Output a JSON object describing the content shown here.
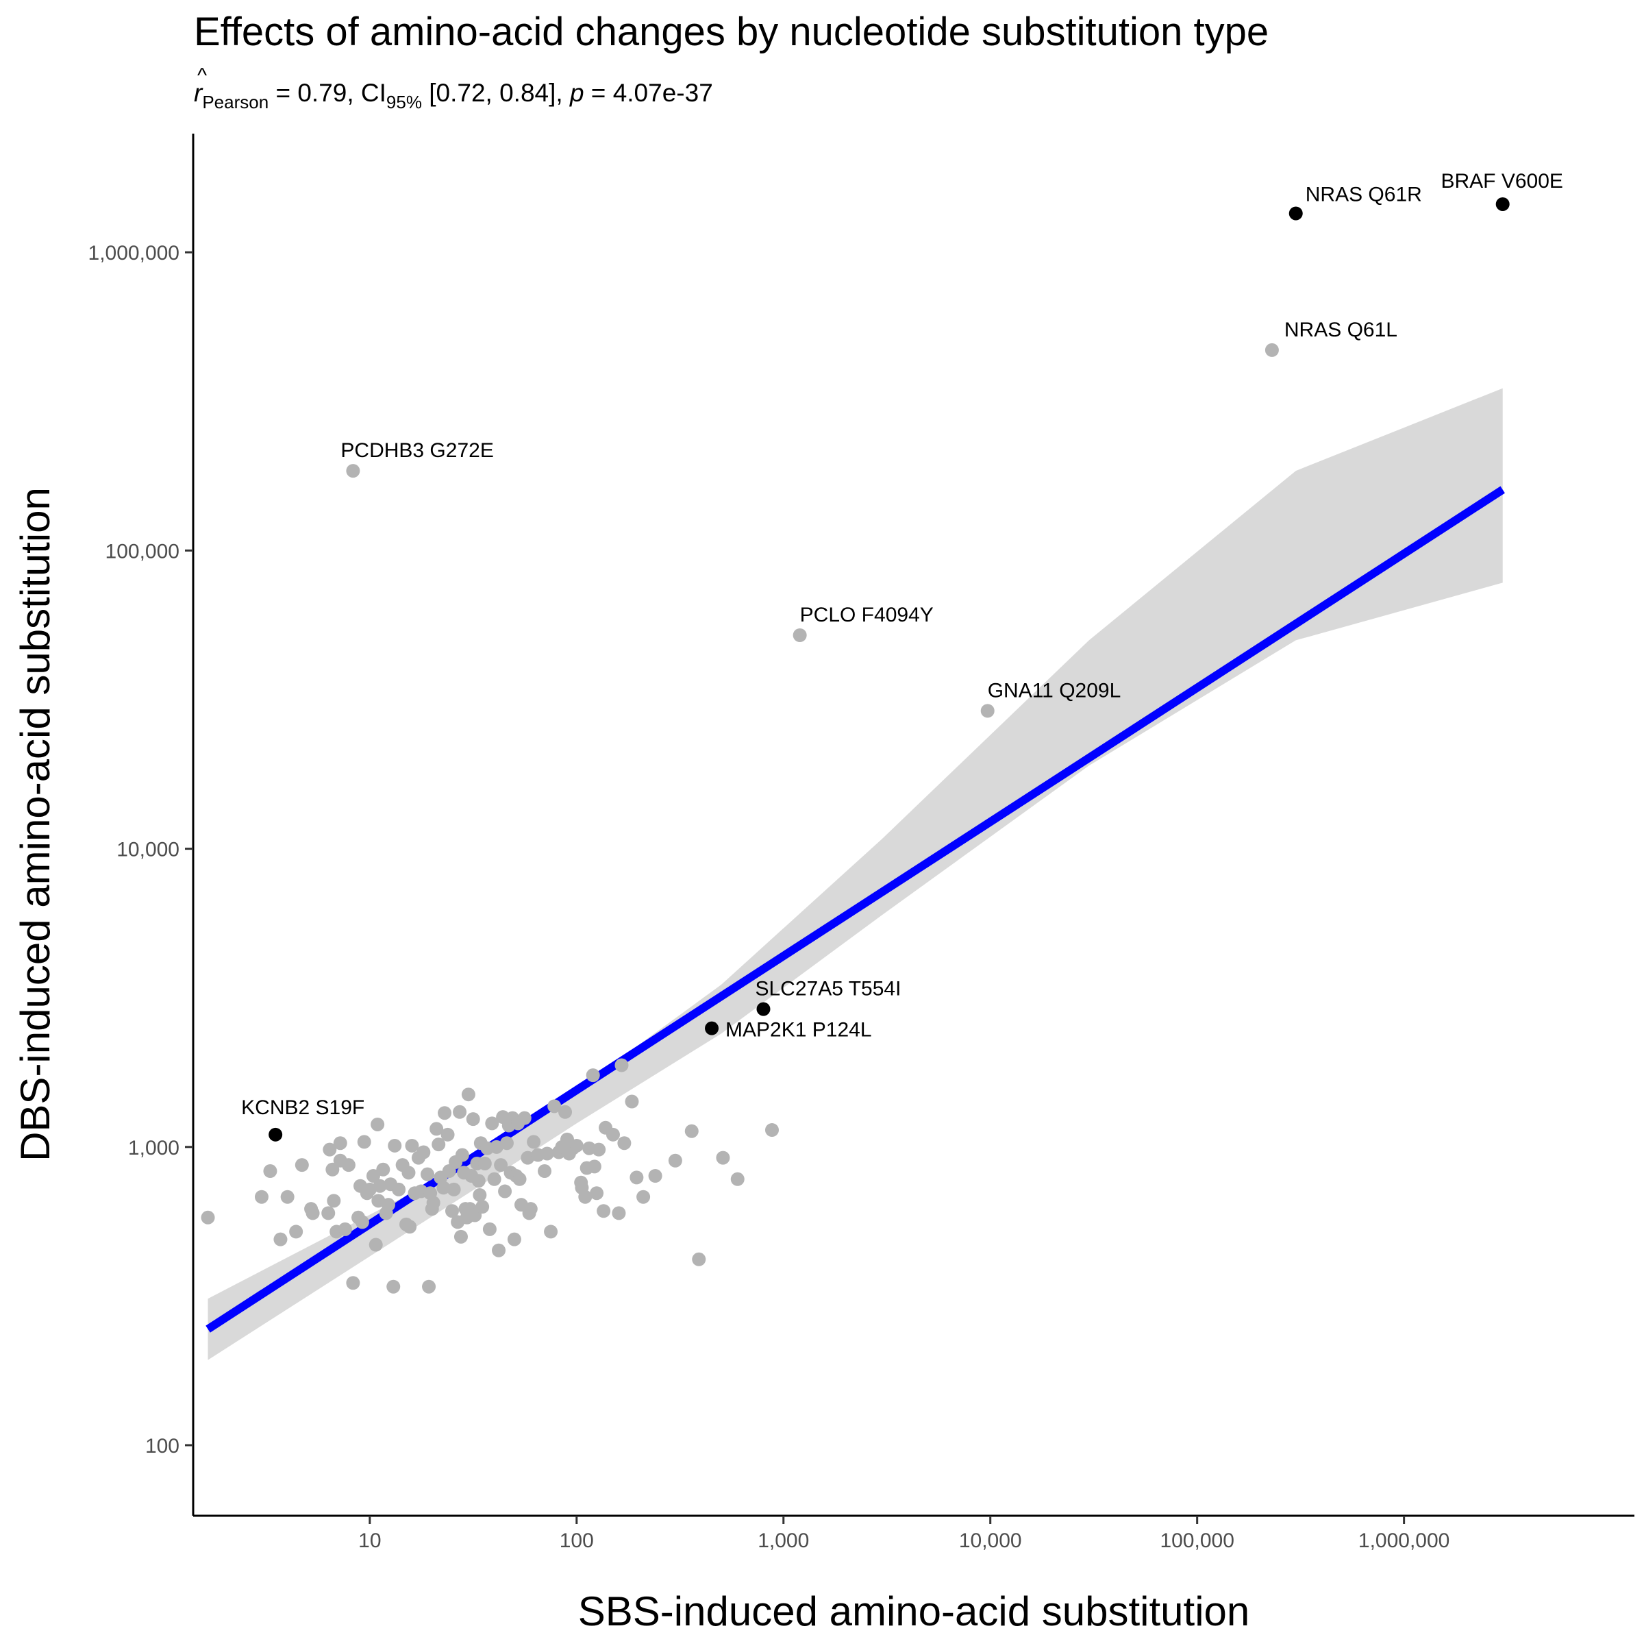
{
  "chart_data": {
    "type": "scatter",
    "title": "Effects of amino-acid changes by nucleotide substitution type",
    "subtitle": {
      "r_symbol": "r",
      "r_sub": "Pearson",
      "r_value": " = 0.79, CI",
      "ci_sub": "95%",
      "ci_value": " [0.72, 0.84], ",
      "p_symbol": "p",
      "p_value": " = 4.07e-37"
    },
    "xlabel": "SBS-induced amino-acid substitution",
    "ylabel": "DBS-induced amino-acid substitution",
    "x_scale": "log10",
    "y_scale": "log10",
    "xlim": [
      1.4,
      13000000
    ],
    "ylim": [
      58,
      2500000
    ],
    "x_ticks": [
      {
        "value": 10,
        "label": "10"
      },
      {
        "value": 100,
        "label": "100"
      },
      {
        "value": 1000,
        "label": "1,000"
      },
      {
        "value": 10000,
        "label": "10,000"
      },
      {
        "value": 100000,
        "label": "100,000"
      },
      {
        "value": 1000000,
        "label": "1,000,000"
      }
    ],
    "y_ticks": [
      {
        "value": 100,
        "label": "100"
      },
      {
        "value": 1000,
        "label": "1,000"
      },
      {
        "value": 10000,
        "label": "10,000"
      },
      {
        "value": 100000,
        "label": "100,000"
      },
      {
        "value": 1000000,
        "label": "1,000,000"
      }
    ],
    "grid": false,
    "legend": "none",
    "colors": {
      "gray_points": "#b3b3b3",
      "black_points": "#000000",
      "fit_line": "#0000ff",
      "ci_band": "#d9d9d9"
    },
    "fit_line": {
      "x": [
        1.65,
        3000000
      ],
      "y": [
        245,
        160000
      ]
    },
    "ci_band": {
      "x": [
        1.65,
        30,
        100,
        500,
        3000,
        30000,
        300000,
        3000000
      ],
      "upper": [
        310,
        880,
        1550,
        3500,
        10800,
        50000,
        185000,
        350000
      ],
      "lower": [
        193,
        700,
        1200,
        2400,
        6000,
        19000,
        50000,
        78000
      ]
    },
    "labeled_points": [
      {
        "label": "BRAF V600E",
        "x": 3000000,
        "y": 1450000,
        "color": "black"
      },
      {
        "label": "NRAS Q61R",
        "x": 300000,
        "y": 1350000,
        "color": "black"
      },
      {
        "label": "NRAS Q61L",
        "x": 230000,
        "y": 470000,
        "color": "gray"
      },
      {
        "label": "PCDHB3 G272E",
        "x": 8.3,
        "y": 185000,
        "color": "gray"
      },
      {
        "label": "PCLO F4094Y",
        "x": 1200,
        "y": 52000,
        "color": "gray"
      },
      {
        "label": "GNA11 Q209L",
        "x": 9700,
        "y": 29000,
        "color": "gray"
      },
      {
        "label": "SLC27A5 T554I",
        "x": 800,
        "y": 2900,
        "color": "black"
      },
      {
        "label": "MAP2K1 P124L",
        "x": 450,
        "y": 2500,
        "color": "black"
      },
      {
        "label": "KCNB2 S19F",
        "x": 3.5,
        "y": 1100,
        "color": "black"
      }
    ],
    "points": [
      {
        "x": 1.65,
        "y": 580
      },
      {
        "x": 3.0,
        "y": 680
      },
      {
        "x": 3.3,
        "y": 830
      },
      {
        "x": 3.7,
        "y": 490
      },
      {
        "x": 4.0,
        "y": 680
      },
      {
        "x": 4.4,
        "y": 520
      },
      {
        "x": 4.7,
        "y": 870
      },
      {
        "x": 5.2,
        "y": 620
      },
      {
        "x": 5.3,
        "y": 600
      },
      {
        "x": 6.3,
        "y": 600
      },
      {
        "x": 6.4,
        "y": 980
      },
      {
        "x": 6.6,
        "y": 840
      },
      {
        "x": 6.7,
        "y": 660
      },
      {
        "x": 6.9,
        "y": 520
      },
      {
        "x": 7.2,
        "y": 1030
      },
      {
        "x": 7.2,
        "y": 900
      },
      {
        "x": 7.6,
        "y": 530
      },
      {
        "x": 7.9,
        "y": 870
      },
      {
        "x": 8.3,
        "y": 350
      },
      {
        "x": 8.8,
        "y": 580
      },
      {
        "x": 9.0,
        "y": 740
      },
      {
        "x": 9.2,
        "y": 560
      },
      {
        "x": 9.4,
        "y": 1040
      },
      {
        "x": 9.7,
        "y": 700
      },
      {
        "x": 10.0,
        "y": 720
      },
      {
        "x": 10.4,
        "y": 800
      },
      {
        "x": 10.7,
        "y": 470
      },
      {
        "x": 10.9,
        "y": 1190
      },
      {
        "x": 11.0,
        "y": 660
      },
      {
        "x": 11.2,
        "y": 740
      },
      {
        "x": 11.6,
        "y": 840
      },
      {
        "x": 12.0,
        "y": 600
      },
      {
        "x": 12.3,
        "y": 640
      },
      {
        "x": 12.6,
        "y": 750
      },
      {
        "x": 13.0,
        "y": 340
      },
      {
        "x": 13.2,
        "y": 1010
      },
      {
        "x": 13.8,
        "y": 720
      },
      {
        "x": 14.4,
        "y": 870
      },
      {
        "x": 15.0,
        "y": 550
      },
      {
        "x": 15.4,
        "y": 820
      },
      {
        "x": 15.6,
        "y": 540
      },
      {
        "x": 16.0,
        "y": 1010
      },
      {
        "x": 16.5,
        "y": 700
      },
      {
        "x": 17.2,
        "y": 920
      },
      {
        "x": 17.7,
        "y": 710
      },
      {
        "x": 18.2,
        "y": 960
      },
      {
        "x": 19.0,
        "y": 810
      },
      {
        "x": 19.3,
        "y": 340
      },
      {
        "x": 19.6,
        "y": 700
      },
      {
        "x": 20.0,
        "y": 620
      },
      {
        "x": 20.3,
        "y": 650
      },
      {
        "x": 21.0,
        "y": 1150
      },
      {
        "x": 21.5,
        "y": 1020
      },
      {
        "x": 22.0,
        "y": 790
      },
      {
        "x": 22.7,
        "y": 730
      },
      {
        "x": 23.0,
        "y": 1300
      },
      {
        "x": 23.8,
        "y": 1100
      },
      {
        "x": 24.2,
        "y": 830
      },
      {
        "x": 25.0,
        "y": 610
      },
      {
        "x": 25.5,
        "y": 720
      },
      {
        "x": 26.0,
        "y": 890
      },
      {
        "x": 26.6,
        "y": 560
      },
      {
        "x": 27.2,
        "y": 1310
      },
      {
        "x": 27.6,
        "y": 500
      },
      {
        "x": 28.0,
        "y": 940
      },
      {
        "x": 28.5,
        "y": 820
      },
      {
        "x": 29.0,
        "y": 620
      },
      {
        "x": 29.5,
        "y": 580
      },
      {
        "x": 30.0,
        "y": 1500
      },
      {
        "x": 30.5,
        "y": 620
      },
      {
        "x": 31.0,
        "y": 800
      },
      {
        "x": 31.6,
        "y": 1240
      },
      {
        "x": 32.2,
        "y": 590
      },
      {
        "x": 33.0,
        "y": 880
      },
      {
        "x": 33.6,
        "y": 770
      },
      {
        "x": 34.0,
        "y": 690
      },
      {
        "x": 34.4,
        "y": 1030
      },
      {
        "x": 35.0,
        "y": 630
      },
      {
        "x": 36.0,
        "y": 880
      },
      {
        "x": 37.0,
        "y": 990
      },
      {
        "x": 38.0,
        "y": 530
      },
      {
        "x": 39.0,
        "y": 1200
      },
      {
        "x": 40.0,
        "y": 780
      },
      {
        "x": 41.0,
        "y": 1000
      },
      {
        "x": 42.0,
        "y": 450
      },
      {
        "x": 43.0,
        "y": 870
      },
      {
        "x": 44.0,
        "y": 1260
      },
      {
        "x": 45.0,
        "y": 710
      },
      {
        "x": 46.0,
        "y": 1030
      },
      {
        "x": 47.0,
        "y": 1180
      },
      {
        "x": 48.0,
        "y": 820
      },
      {
        "x": 49.0,
        "y": 1250
      },
      {
        "x": 50.0,
        "y": 490
      },
      {
        "x": 51.0,
        "y": 800
      },
      {
        "x": 52.0,
        "y": 1200
      },
      {
        "x": 53.0,
        "y": 780
      },
      {
        "x": 54.0,
        "y": 640
      },
      {
        "x": 56.0,
        "y": 1250
      },
      {
        "x": 58.0,
        "y": 920
      },
      {
        "x": 59.0,
        "y": 600
      },
      {
        "x": 60.0,
        "y": 620
      },
      {
        "x": 62.0,
        "y": 1040
      },
      {
        "x": 65.0,
        "y": 940
      },
      {
        "x": 70.0,
        "y": 830
      },
      {
        "x": 72.0,
        "y": 950
      },
      {
        "x": 75.0,
        "y": 520
      },
      {
        "x": 78.0,
        "y": 1370
      },
      {
        "x": 82.0,
        "y": 960
      },
      {
        "x": 85.0,
        "y": 1000
      },
      {
        "x": 88.0,
        "y": 1310
      },
      {
        "x": 90.0,
        "y": 1060
      },
      {
        "x": 92.0,
        "y": 950
      },
      {
        "x": 96.0,
        "y": 990
      },
      {
        "x": 100.0,
        "y": 1010
      },
      {
        "x": 105.0,
        "y": 760
      },
      {
        "x": 106.0,
        "y": 730
      },
      {
        "x": 110.0,
        "y": 680
      },
      {
        "x": 112.0,
        "y": 850
      },
      {
        "x": 115.0,
        "y": 990
      },
      {
        "x": 120.0,
        "y": 1740
      },
      {
        "x": 122.0,
        "y": 860
      },
      {
        "x": 125.0,
        "y": 700
      },
      {
        "x": 128.0,
        "y": 980
      },
      {
        "x": 135.0,
        "y": 610
      },
      {
        "x": 138.0,
        "y": 1160
      },
      {
        "x": 150.0,
        "y": 1100
      },
      {
        "x": 160.0,
        "y": 600
      },
      {
        "x": 165.0,
        "y": 1880
      },
      {
        "x": 170.0,
        "y": 1030
      },
      {
        "x": 185.0,
        "y": 1420
      },
      {
        "x": 195.0,
        "y": 790
      },
      {
        "x": 210.0,
        "y": 680
      },
      {
        "x": 240.0,
        "y": 800
      },
      {
        "x": 300.0,
        "y": 900
      },
      {
        "x": 360.0,
        "y": 1130
      },
      {
        "x": 390.0,
        "y": 420
      },
      {
        "x": 510.0,
        "y": 920
      },
      {
        "x": 600.0,
        "y": 780
      },
      {
        "x": 880.0,
        "y": 1140
      }
    ]
  }
}
